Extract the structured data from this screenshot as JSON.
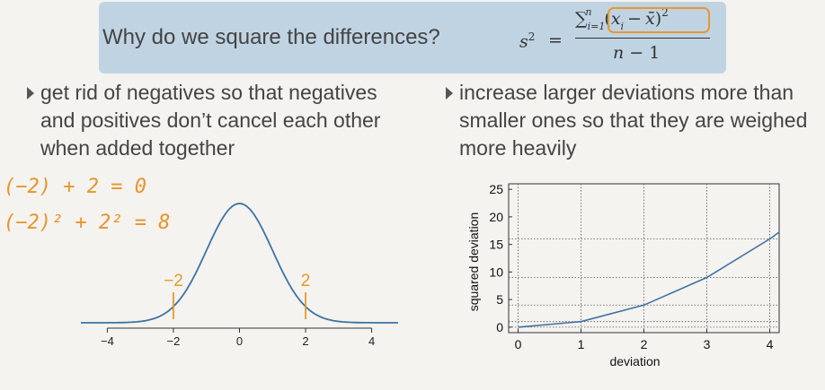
{
  "banner": {
    "question": "Why do we square the differences?",
    "formula": {
      "lhs": "s",
      "lhs_power": "2",
      "equals": "=",
      "sum_symbol": "∑",
      "sum_lower": "i=1",
      "sum_upper": "n",
      "term_open": "(",
      "term_x": "x",
      "term_i": "i",
      "term_minus": "−",
      "term_xbar": "x̄",
      "term_close": ")",
      "term_power": "2",
      "den_n": "n",
      "den_rest": " − 1"
    },
    "highlight_color": "#e8982e"
  },
  "bullets": {
    "left": "get rid of negatives so that negatives and positives don’t cancel each other when added together",
    "right": "increase larger deviations more than smaller ones so that they are weighed more heavily"
  },
  "handwriting": {
    "line1": "(−2) + 2 = 0",
    "line2": "(−2)² + 2² = 8",
    "color": "#e8942a"
  },
  "chart_data": [
    {
      "type": "line",
      "x_ticks": [
        "−4",
        "−2",
        "0",
        "2",
        "4"
      ],
      "xlim": [
        -4.8,
        4.8
      ],
      "annotations": [
        {
          "x": -2,
          "label": "−2"
        },
        {
          "x": 2,
          "label": "2"
        }
      ],
      "annotation_color": "#e8982e",
      "line_color": "#3d72a6",
      "grid": false
    },
    {
      "type": "line",
      "x": [
        0,
        1,
        2,
        3,
        4
      ],
      "values": [
        0,
        1,
        4,
        9,
        16
      ],
      "xlabel": "deviation",
      "ylabel": "squared deviation",
      "x_ticks": [
        "0",
        "1",
        "2",
        "3",
        "4"
      ],
      "y_ticks": [
        "0",
        "5",
        "10",
        "15",
        "20",
        "25"
      ],
      "xlim": [
        -0.15,
        4.15
      ],
      "ylim": [
        -1,
        26
      ],
      "line_color": "#3d72a6",
      "grid": true
    }
  ]
}
